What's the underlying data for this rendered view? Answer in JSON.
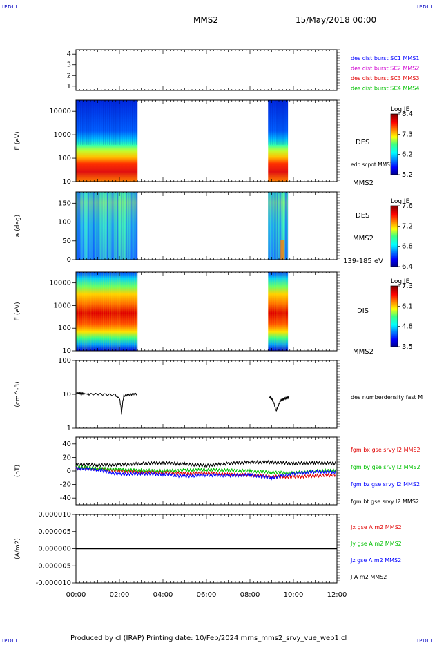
{
  "corner_label": "IPDLI",
  "header": {
    "mission": "MMS2",
    "datetime": "15/May/2018 00:00"
  },
  "footer": "Produced by cl (IRAP)   Printing date: 10/Feb/2024   mms_mms2_srvy_vue_web1.cl",
  "colors": {
    "mms1": "#0000ff",
    "mms2": "#d000d0",
    "mms3": "#e00000",
    "mms4": "#00c000",
    "bx": "#e00000",
    "by": "#00c000",
    "bz": "#0000ff",
    "bt": "#000000"
  },
  "chart_data": [
    {
      "type": "line",
      "id": "spacecraft",
      "ylabel": "",
      "yticks": [
        "1",
        "2",
        "3",
        "4"
      ],
      "legend": [
        {
          "text": "des dist burst SC1 MMS1",
          "color": "#0000ff"
        },
        {
          "text": "des dist burst SC2 MMS2",
          "color": "#d000d0"
        },
        {
          "text": "des dist burst SC3 MMS3",
          "color": "#e00000"
        },
        {
          "text": "des dist burst SC4 MMS4",
          "color": "#00c000"
        }
      ],
      "series": []
    },
    {
      "type": "heatmap",
      "id": "des-energy",
      "ylabel": "E (eV)",
      "yscale": "log",
      "ylim": [
        10,
        30000
      ],
      "yticks": [
        "10",
        "100",
        "1000",
        "10000"
      ],
      "instrument": "DES",
      "sublabel": "edp scpot MMS2",
      "spacecraft": "MMS2",
      "colorbar": {
        "title": "Log JE",
        "ticks": [
          "8.4",
          "7.3",
          "6.2",
          "5.2"
        ]
      },
      "coverage": [
        [
          "00:00",
          "02:50"
        ],
        [
          "08:50",
          "09:45"
        ]
      ]
    },
    {
      "type": "heatmap",
      "id": "des-pitch",
      "ylabel": "a (deg)",
      "ylim": [
        0,
        180
      ],
      "yticks": [
        "0",
        "50",
        "100",
        "150"
      ],
      "instrument": "DES",
      "spacecraft": "MMS2",
      "energy_range": "139-185 eV",
      "colorbar": {
        "title": "Log JE",
        "ticks": [
          "7.6",
          "7.2",
          "6.8",
          "6.4"
        ]
      },
      "coverage": [
        [
          "00:00",
          "02:50"
        ],
        [
          "08:50",
          "09:45"
        ]
      ]
    },
    {
      "type": "heatmap",
      "id": "dis-energy",
      "ylabel": "E (eV)",
      "yscale": "log",
      "ylim": [
        10,
        30000
      ],
      "yticks": [
        "10",
        "100",
        "1000",
        "10000"
      ],
      "instrument": "DIS",
      "spacecraft": "MMS2",
      "colorbar": {
        "title": "Log JE",
        "ticks": [
          "7.3",
          "6.1",
          "4.8",
          "3.5"
        ]
      },
      "coverage": [
        [
          "00:00",
          "02:50"
        ],
        [
          "08:50",
          "09:45"
        ]
      ]
    },
    {
      "type": "line",
      "id": "density",
      "ylabel": "(cm^-3)",
      "yscale": "log",
      "ylim": [
        1,
        100
      ],
      "yticks": [
        "1",
        "10",
        "100"
      ],
      "legend": [
        {
          "text": "des numberdensity fast M",
          "color": "#000000"
        }
      ],
      "series": [
        {
          "x": [
            0.0,
            0.3,
            0.6,
            1.0,
            1.4,
            1.8,
            2.0,
            2.1,
            2.2,
            2.4,
            2.6,
            2.8
          ],
          "y": [
            11,
            10.5,
            10,
            10.2,
            9.8,
            9.6,
            7.5,
            2.5,
            9,
            9.5,
            10,
            10.2
          ]
        },
        {
          "x": [
            8.9,
            9.0,
            9.1,
            9.2,
            9.3,
            9.4,
            9.5,
            9.6,
            9.7,
            9.8
          ],
          "y": [
            8.5,
            7.5,
            5.5,
            3.2,
            4.5,
            6.5,
            7,
            7.5,
            8,
            8.2
          ]
        }
      ]
    },
    {
      "type": "line",
      "id": "magnetic-field",
      "ylabel": "(nT)",
      "ylim": [
        -50,
        50
      ],
      "yticks": [
        "-40",
        "-20",
        "0",
        "20",
        "40"
      ],
      "legend": [
        {
          "text": "fgm bx gse srvy l2 MMS2",
          "color": "#e00000"
        },
        {
          "text": "fgm by gse srvy l2 MMS2",
          "color": "#00c000"
        },
        {
          "text": "fgm bz gse srvy l2 MMS2",
          "color": "#0000ff"
        },
        {
          "text": "fgm bt gse srvy l2 MMS2",
          "color": "#000000"
        }
      ],
      "series": [
        {
          "name": "bx",
          "color": "#e00000",
          "x": [
            0,
            1,
            2,
            3,
            4,
            5,
            6,
            7,
            8,
            9,
            10,
            11,
            12
          ],
          "y": [
            5,
            3,
            0,
            -2,
            -2,
            -4,
            -3,
            -5,
            -6,
            -8,
            -9,
            -7,
            -6
          ]
        },
        {
          "name": "by",
          "color": "#00c000",
          "x": [
            0,
            1,
            2,
            3,
            4,
            5,
            6,
            7,
            8,
            9,
            10,
            11,
            12
          ],
          "y": [
            6,
            4,
            2,
            1,
            0,
            1,
            2,
            1,
            0,
            -2,
            -3,
            0,
            1
          ]
        },
        {
          "name": "bz",
          "color": "#0000ff",
          "x": [
            0,
            1,
            2,
            3,
            4,
            5,
            6,
            7,
            8,
            9,
            10,
            11,
            12
          ],
          "y": [
            4,
            2,
            -5,
            -4,
            -5,
            -8,
            -6,
            -7,
            -6,
            -10,
            -4,
            -1,
            -2
          ]
        },
        {
          "name": "bt",
          "color": "#000000",
          "x": [
            0,
            1,
            2,
            3,
            4,
            5,
            6,
            7,
            8,
            9,
            10,
            11,
            12
          ],
          "y": [
            10,
            9,
            9,
            11,
            12,
            10,
            8,
            11,
            13,
            13,
            11,
            12,
            11
          ]
        }
      ]
    },
    {
      "type": "line",
      "id": "current-density",
      "ylabel": "(A/m2)",
      "ylim": [
        -1e-05,
        1e-05
      ],
      "yticks": [
        "-0.000010",
        "-0.000005",
        "0.000000",
        "0.000005",
        "0.000010"
      ],
      "legend": [
        {
          "text": "Jx gse A m2 MMS2",
          "color": "#e00000"
        },
        {
          "text": "Jy gse A m2 MMS2",
          "color": "#00c000"
        },
        {
          "text": "Jz gse A m2 MMS2",
          "color": "#0000ff"
        },
        {
          "text": "J A m2 MMS2",
          "color": "#000000"
        }
      ],
      "series": [
        {
          "name": "J",
          "x": [
            0,
            12
          ],
          "y": [
            0,
            0
          ]
        }
      ]
    }
  ],
  "time_axis": {
    "labels": [
      "00:00",
      "02:00",
      "04:00",
      "06:00",
      "08:00",
      "10:00",
      "12:00"
    ],
    "range_hours": [
      0,
      12
    ]
  }
}
